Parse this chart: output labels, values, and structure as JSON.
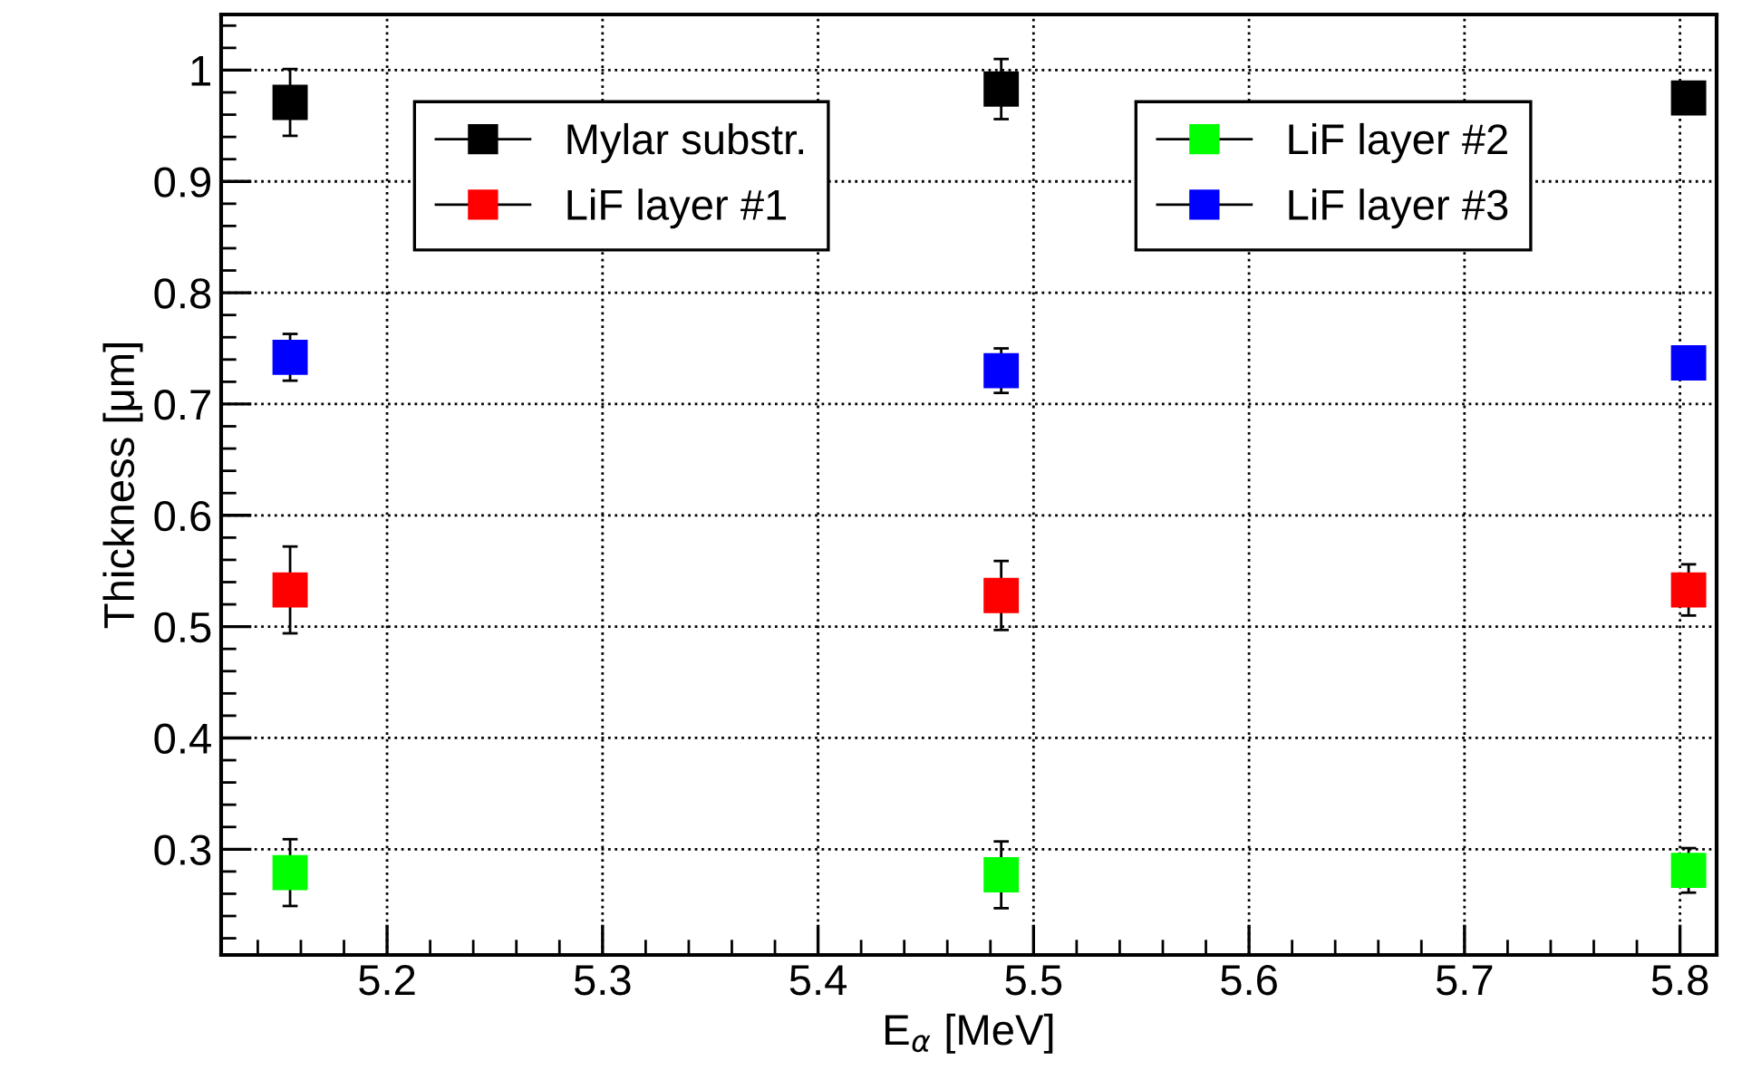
{
  "chart_data": {
    "type": "scatter",
    "xlabel": "E$_{α}$ [MeV]",
    "ylabel": "Thickness [μm]",
    "xlim": [
      5.123,
      5.817
    ],
    "ylim": [
      0.205,
      1.05
    ],
    "xticks": [
      5.2,
      5.3,
      5.4,
      5.5,
      5.6,
      5.7,
      5.8
    ],
    "yticks": [
      0.3,
      0.4,
      0.5,
      0.6,
      0.7,
      0.8,
      0.9,
      1
    ],
    "x": [
      5.155,
      5.485,
      5.804
    ],
    "series": [
      {
        "name": "Mylar substr.",
        "color": "#000000",
        "values": [
          0.971,
          0.983,
          0.975
        ],
        "errors": [
          0.03,
          0.027,
          0.01
        ]
      },
      {
        "name": "LiF layer #1",
        "color": "#ff0000",
        "values": [
          0.533,
          0.528,
          0.533
        ],
        "errors": [
          0.039,
          0.031,
          0.023
        ]
      },
      {
        "name": "LiF layer #2",
        "color": "#00ff00",
        "values": [
          0.279,
          0.277,
          0.281
        ],
        "errors": [
          0.03,
          0.03,
          0.02
        ]
      },
      {
        "name": "LiF layer #3",
        "color": "#0000ff",
        "values": [
          0.742,
          0.73,
          0.737
        ],
        "errors": [
          0.021,
          0.02,
          null
        ]
      }
    ],
    "marker": "square",
    "grid": true,
    "legend": "top"
  }
}
